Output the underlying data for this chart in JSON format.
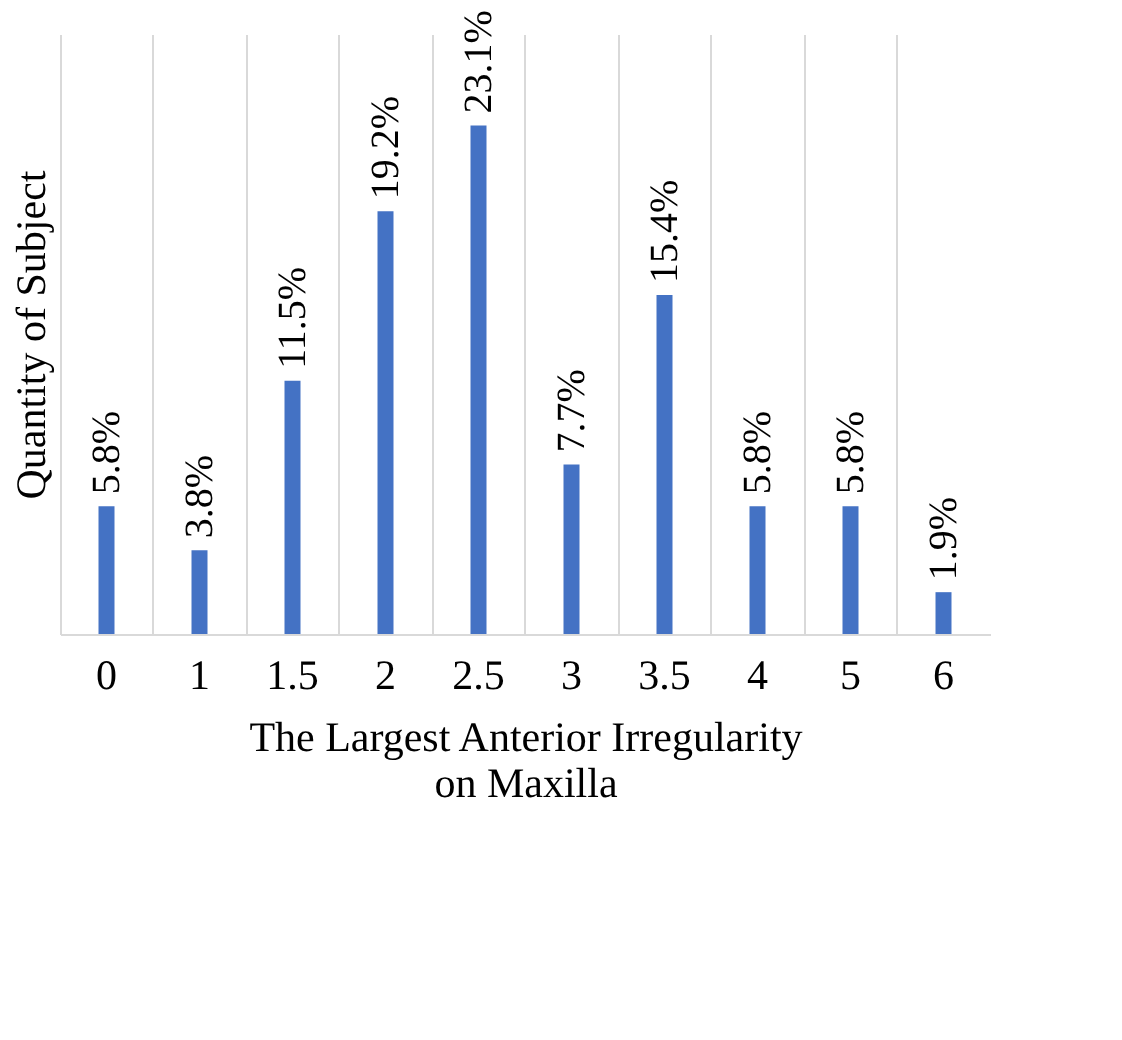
{
  "chart_data": {
    "type": "bar",
    "xlabel": "The Largest Anterior Irregularity\non Maxilla",
    "ylabel": "Quantity of Subject",
    "categories": [
      "0",
      "1",
      "1.5",
      "2",
      "2.5",
      "3",
      "3.5",
      "4",
      "5",
      "6"
    ],
    "values": [
      5.8,
      3.8,
      11.5,
      19.2,
      23.1,
      7.7,
      15.4,
      5.8,
      5.8,
      1.9
    ],
    "value_labels": [
      "5.8%",
      "3.8%",
      "11.5%",
      "19.2%",
      "23.1%",
      "7.7%",
      "15.4%",
      "5.8%",
      "5.8%",
      "1.9%"
    ],
    "color": "#4472c4",
    "grid": "x"
  }
}
